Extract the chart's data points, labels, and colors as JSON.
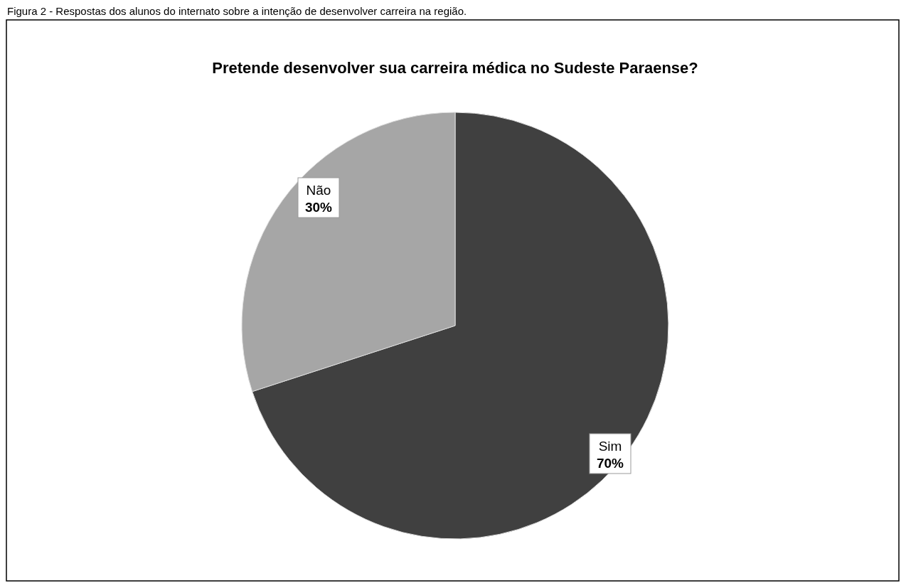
{
  "chart_data": {
    "type": "pie",
    "title": "Pretende desenvolver sua carreira médica no Sudeste Paraense?",
    "annotations": [
      "Figura 2 - Respostas dos alunos do internato sobre a intenção de desenvolver carreira na região."
    ],
    "categories": [
      "Sim",
      "Não"
    ],
    "values": [
      70,
      30
    ],
    "value_labels": [
      "70%",
      "30%"
    ],
    "colors": [
      "#404040",
      "#a6a6a6"
    ],
    "legend": false
  }
}
